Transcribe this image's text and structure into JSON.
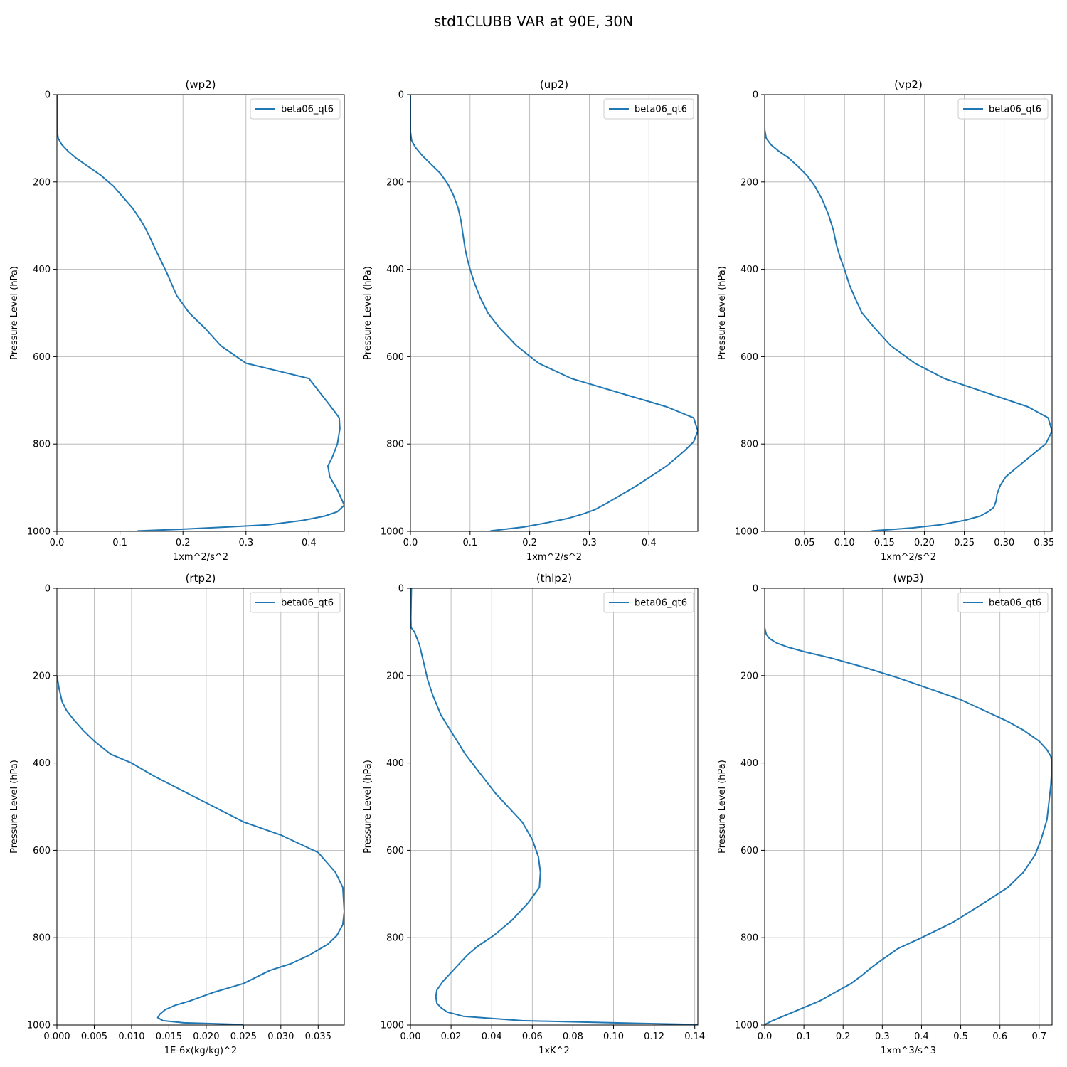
{
  "figure": {
    "title": "std1CLUBB VAR at 90E, 30N",
    "series_color": "#1f77b4",
    "grid_color": "#b0b0b0"
  },
  "chart_data": [
    {
      "type": "line",
      "title": "(wp2)",
      "xlabel": "1xm^2/s^2",
      "ylabel": "Pressure Level (hPa)",
      "xlim": [
        0,
        0.456
      ],
      "ylim": [
        1000,
        0
      ],
      "xticks": [
        0.0,
        0.1,
        0.2,
        0.3,
        0.4
      ],
      "xtick_labels": [
        "0.0",
        "0.1",
        "0.2",
        "0.3",
        "0.4"
      ],
      "yticks": [
        0,
        200,
        400,
        600,
        800,
        1000
      ],
      "ytick_labels": [
        "0",
        "200",
        "400",
        "600",
        "800",
        "1000"
      ],
      "grid": true,
      "legend": "upper-right",
      "series": [
        {
          "name": "beta06_qt6",
          "x": [
            0.0,
            0.0,
            0.002,
            0.008,
            0.018,
            0.03,
            0.05,
            0.07,
            0.09,
            0.105,
            0.12,
            0.132,
            0.14,
            0.147,
            0.155,
            0.165,
            0.175,
            0.19,
            0.21,
            0.235,
            0.26,
            0.3,
            0.4,
            0.435,
            0.448,
            0.449,
            0.445,
            0.437,
            0.43,
            0.433,
            0.445,
            0.456,
            0.445,
            0.425,
            0.39,
            0.335,
            0.27,
            0.2,
            0.128
          ],
          "y": [
            0,
            80,
            100,
            115,
            130,
            145,
            165,
            185,
            210,
            235,
            260,
            285,
            305,
            325,
            350,
            380,
            410,
            460,
            500,
            535,
            575,
            615,
            650,
            715,
            740,
            765,
            800,
            830,
            850,
            875,
            905,
            940,
            955,
            965,
            975,
            985,
            990,
            995,
            999
          ]
        }
      ]
    },
    {
      "type": "line",
      "title": "(up2)",
      "xlabel": "1xm^2/s^2",
      "ylabel": "Pressure Level (hPa)",
      "xlim": [
        0,
        0.482
      ],
      "ylim": [
        1000,
        0
      ],
      "xticks": [
        0.0,
        0.1,
        0.2,
        0.3,
        0.4
      ],
      "xtick_labels": [
        "0.0",
        "0.1",
        "0.2",
        "0.3",
        "0.4"
      ],
      "yticks": [
        0,
        200,
        400,
        600,
        800,
        1000
      ],
      "ytick_labels": [
        "0",
        "200",
        "400",
        "600",
        "800",
        "1000"
      ],
      "grid": true,
      "legend": "upper-right",
      "series": [
        {
          "name": "beta06_qt6",
          "x": [
            0.0,
            0.0,
            0.002,
            0.008,
            0.02,
            0.035,
            0.05,
            0.063,
            0.072,
            0.08,
            0.085,
            0.088,
            0.092,
            0.096,
            0.1,
            0.107,
            0.117,
            0.13,
            0.15,
            0.178,
            0.215,
            0.27,
            0.43,
            0.475,
            0.482,
            0.475,
            0.46,
            0.43,
            0.38,
            0.33,
            0.31,
            0.29,
            0.265,
            0.23,
            0.19,
            0.134
          ],
          "y": [
            0,
            85,
            105,
            120,
            140,
            160,
            180,
            205,
            230,
            260,
            290,
            320,
            355,
            380,
            400,
            430,
            465,
            500,
            535,
            575,
            615,
            650,
            715,
            740,
            770,
            795,
            815,
            850,
            895,
            935,
            950,
            960,
            970,
            980,
            990,
            999
          ]
        }
      ]
    },
    {
      "type": "line",
      "title": "(vp2)",
      "xlabel": "1xm^2/s^2",
      "ylabel": "Pressure Level (hPa)",
      "xlim": [
        0,
        0.36
      ],
      "ylim": [
        1000,
        0
      ],
      "xticks": [
        0.05,
        0.1,
        0.15,
        0.2,
        0.25,
        0.3,
        0.35
      ],
      "xtick_labels": [
        "0.05",
        "0.10",
        "0.15",
        "0.20",
        "0.25",
        "0.30",
        "0.35"
      ],
      "yticks": [
        0,
        200,
        400,
        600,
        800,
        1000
      ],
      "ytick_labels": [
        "0",
        "200",
        "400",
        "600",
        "800",
        "1000"
      ],
      "grid": true,
      "legend": "upper-right",
      "series": [
        {
          "name": "beta06_qt6",
          "x": [
            0.0,
            0.0,
            0.002,
            0.008,
            0.018,
            0.03,
            0.042,
            0.053,
            0.063,
            0.072,
            0.08,
            0.086,
            0.09,
            0.095,
            0.1,
            0.106,
            0.113,
            0.122,
            0.138,
            0.158,
            0.188,
            0.225,
            0.33,
            0.355,
            0.36,
            0.352,
            0.335,
            0.315,
            0.302,
            0.295,
            0.291,
            0.29,
            0.287,
            0.28,
            0.27,
            0.25,
            0.22,
            0.185,
            0.134
          ],
          "y": [
            0,
            80,
            100,
            115,
            130,
            145,
            165,
            185,
            210,
            240,
            275,
            310,
            345,
            375,
            400,
            435,
            465,
            500,
            535,
            575,
            615,
            650,
            715,
            740,
            770,
            800,
            825,
            855,
            875,
            895,
            915,
            930,
            945,
            955,
            965,
            975,
            985,
            992,
            999
          ]
        }
      ]
    },
    {
      "type": "line",
      "title": "(rtp2)",
      "xlabel": "1E-6x(kg/kg)^2",
      "ylabel": "Pressure Level (hPa)",
      "xlim": [
        0,
        0.0385
      ],
      "ylim": [
        1000,
        0
      ],
      "xticks": [
        0.0,
        0.005,
        0.01,
        0.015,
        0.02,
        0.025,
        0.03,
        0.035
      ],
      "xtick_labels": [
        "0.000",
        "0.005",
        "0.010",
        "0.015",
        "0.020",
        "0.025",
        "0.030",
        "0.035"
      ],
      "yticks": [
        0,
        200,
        400,
        600,
        800,
        1000
      ],
      "ytick_labels": [
        "0",
        "200",
        "400",
        "600",
        "800",
        "1000"
      ],
      "grid": true,
      "legend": "upper-right",
      "series": [
        {
          "name": "beta06_qt6",
          "x": [
            0.0,
            0.0003,
            0.0007,
            0.0013,
            0.0022,
            0.0035,
            0.005,
            0.0072,
            0.01,
            0.013,
            0.017,
            0.021,
            0.025,
            0.03,
            0.035,
            0.0373,
            0.0383,
            0.0385,
            0.0383,
            0.0375,
            0.0363,
            0.0338,
            0.0313,
            0.0285,
            0.025,
            0.021,
            0.0178,
            0.0158,
            0.0145,
            0.0138,
            0.0135,
            0.0142,
            0.017,
            0.025
          ],
          "y": [
            200,
            230,
            260,
            280,
            300,
            325,
            350,
            380,
            400,
            430,
            465,
            500,
            535,
            565,
            605,
            650,
            685,
            740,
            770,
            795,
            815,
            840,
            860,
            875,
            905,
            925,
            945,
            955,
            965,
            975,
            983,
            990,
            995,
            999
          ]
        }
      ]
    },
    {
      "type": "line",
      "title": "(thlp2)",
      "xlabel": "1xK^2",
      "ylabel": "Pressure Level (hPa)",
      "xlim": [
        0,
        0.1415
      ],
      "ylim": [
        1000,
        0
      ],
      "xticks": [
        0.0,
        0.02,
        0.04,
        0.06,
        0.08,
        0.1,
        0.12,
        0.14
      ],
      "xtick_labels": [
        "0.00",
        "0.02",
        "0.04",
        "0.06",
        "0.08",
        "0.10",
        "0.12",
        "0.14"
      ],
      "yticks": [
        0,
        200,
        400,
        600,
        800,
        1000
      ],
      "ytick_labels": [
        "0",
        "200",
        "400",
        "600",
        "800",
        "1000"
      ],
      "grid": true,
      "legend": "upper-right",
      "series": [
        {
          "name": "beta06_qt6",
          "x": [
            0.0005,
            0.0003,
            0.0002,
            0.0003,
            0.002,
            0.0045,
            0.0065,
            0.0085,
            0.011,
            0.015,
            0.019,
            0.023,
            0.027,
            0.032,
            0.037,
            0.042,
            0.048,
            0.055,
            0.06,
            0.063,
            0.064,
            0.0635,
            0.058,
            0.05,
            0.041,
            0.033,
            0.028,
            0.024,
            0.02,
            0.016,
            0.013,
            0.0125,
            0.013,
            0.015,
            0.018,
            0.026,
            0.04,
            0.055,
            0.1,
            0.1415
          ],
          "y": [
            0,
            40,
            70,
            90,
            100,
            130,
            170,
            210,
            245,
            290,
            320,
            350,
            380,
            410,
            440,
            470,
            500,
            535,
            575,
            615,
            650,
            685,
            720,
            760,
            795,
            820,
            840,
            860,
            880,
            900,
            920,
            935,
            950,
            960,
            970,
            980,
            985,
            990,
            995,
            999
          ]
        }
      ]
    },
    {
      "type": "line",
      "title": "(wp3)",
      "xlabel": "1xm^3/s^3",
      "ylabel": "Pressure Level (hPa)",
      "xlim": [
        0,
        0.733
      ],
      "ylim": [
        1000,
        0
      ],
      "xticks": [
        0.0,
        0.1,
        0.2,
        0.3,
        0.4,
        0.5,
        0.6,
        0.7
      ],
      "xtick_labels": [
        "0.0",
        "0.1",
        "0.2",
        "0.3",
        "0.4",
        "0.5",
        "0.6",
        "0.7"
      ],
      "yticks": [
        0,
        200,
        400,
        600,
        800,
        1000
      ],
      "ytick_labels": [
        "0",
        "200",
        "400",
        "600",
        "800",
        "1000"
      ],
      "grid": true,
      "legend": "upper-right",
      "series": [
        {
          "name": "beta06_qt6",
          "x": [
            0.0,
            0.0,
            0.004,
            0.012,
            0.03,
            0.06,
            0.1,
            0.17,
            0.25,
            0.34,
            0.42,
            0.5,
            0.56,
            0.62,
            0.66,
            0.7,
            0.72,
            0.73,
            0.733,
            0.73,
            0.72,
            0.705,
            0.69,
            0.66,
            0.62,
            0.56,
            0.48,
            0.4,
            0.34,
            0.3,
            0.27,
            0.25,
            0.22,
            0.18,
            0.14,
            0.1,
            0.06,
            0.02,
            0.0
          ],
          "y": [
            0,
            90,
            105,
            115,
            125,
            135,
            145,
            160,
            180,
            205,
            230,
            255,
            280,
            305,
            325,
            350,
            370,
            385,
            400,
            450,
            530,
            575,
            610,
            650,
            685,
            720,
            765,
            800,
            825,
            850,
            870,
            885,
            905,
            925,
            945,
            960,
            975,
            990,
            999
          ]
        }
      ]
    }
  ]
}
